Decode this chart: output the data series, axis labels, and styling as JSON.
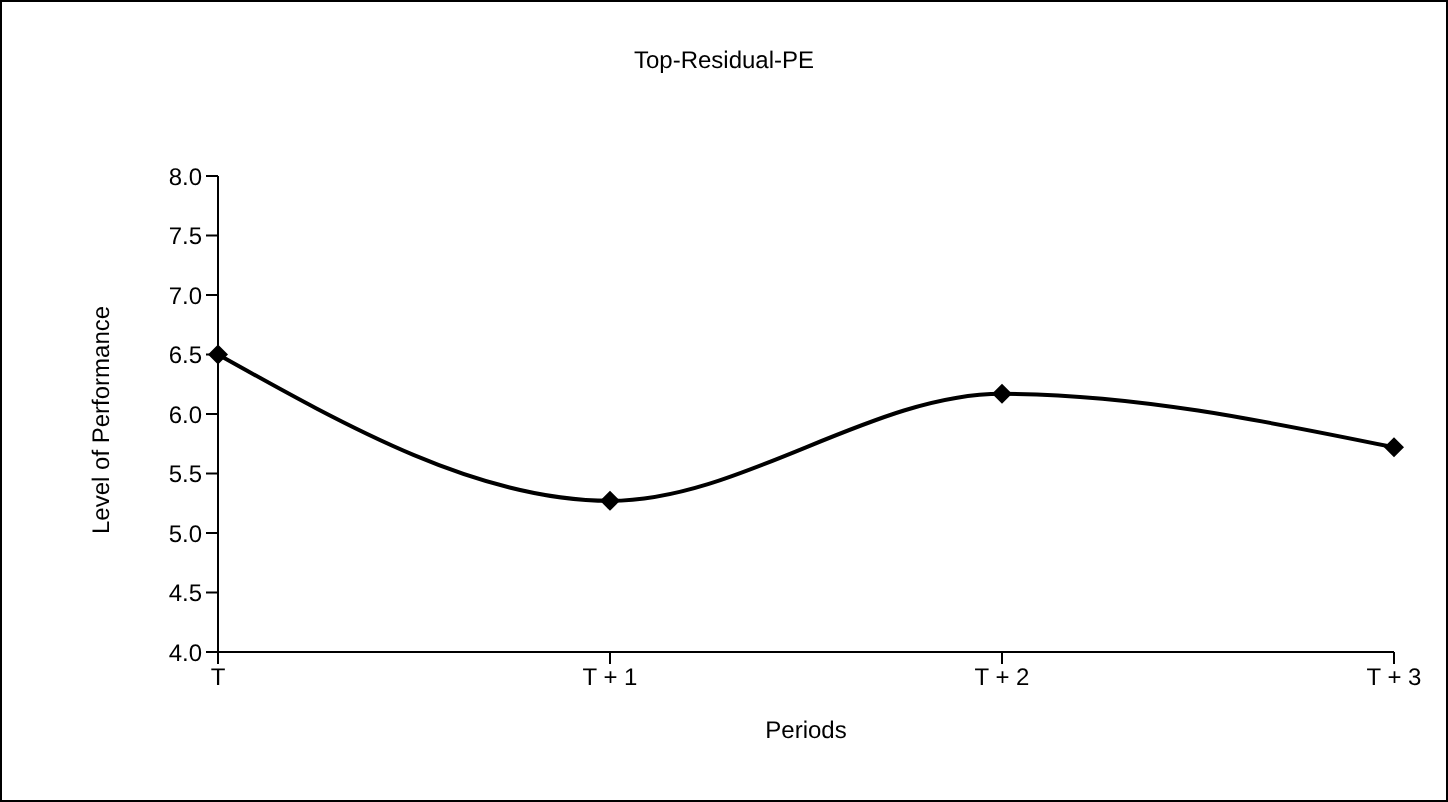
{
  "chart_data": {
    "type": "line",
    "title": "Top-Residual-PE",
    "xlabel": "Periods",
    "ylabel": "Level of Performance",
    "categories": [
      "T",
      "T + 1",
      "T + 2",
      "T + 3"
    ],
    "series": [
      {
        "color": "#000000",
        "values": [
          6.5,
          5.27,
          6.17,
          5.72
        ]
      }
    ],
    "ylim": [
      4,
      8
    ],
    "yticks": [
      {
        "value": 4,
        "label": "4.0"
      },
      {
        "value": 4.5,
        "label": "4.5"
      },
      {
        "value": 5,
        "label": "5.0"
      },
      {
        "value": 5.5,
        "label": "5.5"
      },
      {
        "value": 6,
        "label": "6.0"
      },
      {
        "value": 6.5,
        "label": "6.5"
      },
      {
        "value": 7,
        "label": "7.0"
      },
      {
        "value": 7.5,
        "label": "7.5"
      },
      {
        "value": 8,
        "label": "8.0"
      }
    ],
    "grid": false,
    "legend": false,
    "marker": "diamond",
    "line_style": "solid"
  }
}
